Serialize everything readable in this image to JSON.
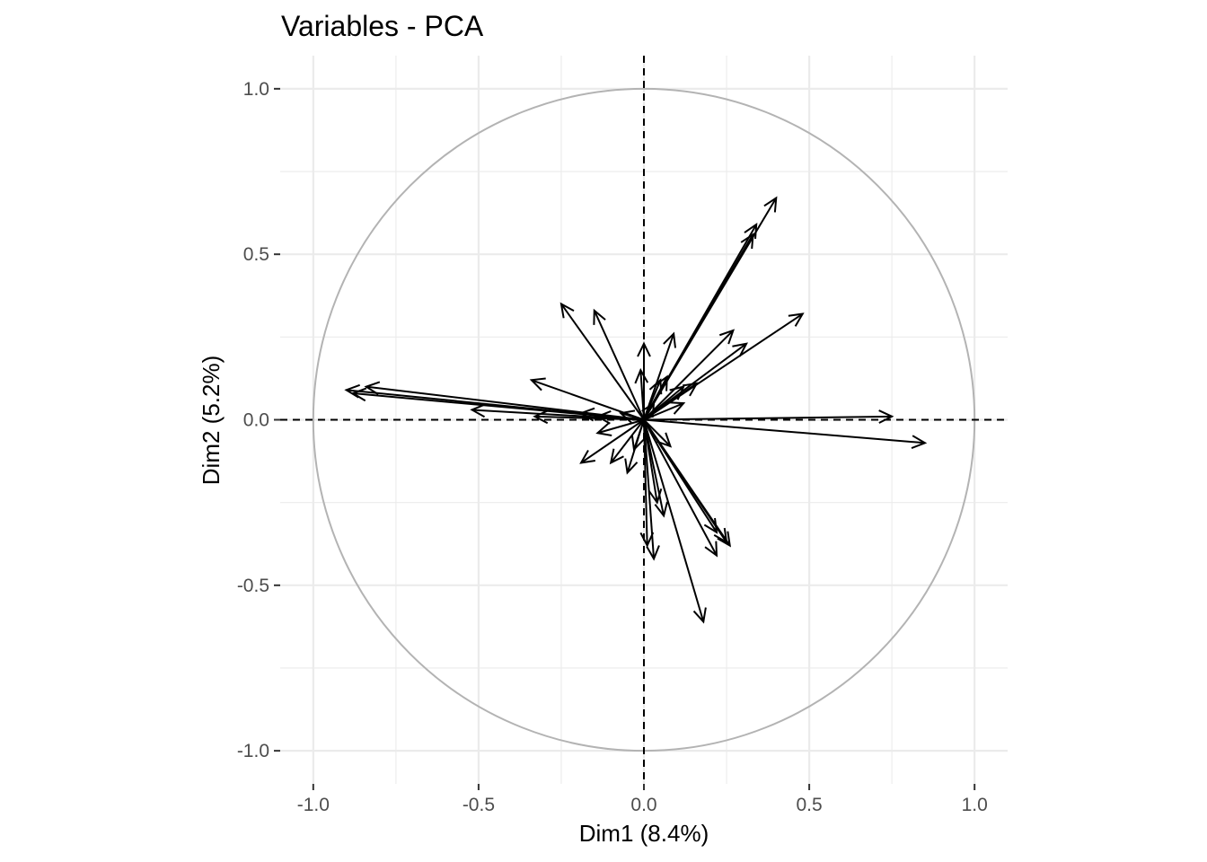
{
  "chart_data": {
    "type": "scatter",
    "subtype": "pca-variable-correlation-circle",
    "title": "Variables - PCA",
    "xlabel": "Dim1 (8.4%)",
    "ylabel": "Dim2 (5.2%)",
    "xlim": [
      -1.1,
      1.1
    ],
    "ylim": [
      -1.1,
      1.1
    ],
    "xticks": [
      -1.0,
      -0.5,
      0.0,
      0.5,
      1.0
    ],
    "yticks": [
      -1.0,
      -0.5,
      0.0,
      0.5,
      1.0
    ],
    "xtick_labels": [
      "-1.0",
      "-0.5",
      "0.0",
      "0.5",
      "1.0"
    ],
    "ytick_labels": [
      "-1.0",
      "-0.5",
      "0.0",
      "0.5",
      "1.0"
    ],
    "grid": true,
    "unit_circle": true,
    "reference_lines": "dashed at x=0 and y=0",
    "colors": {
      "arrow": "#000000",
      "circle": "#b3b3b3",
      "grid": "#ebebeb",
      "tick": "#4d4d4d"
    },
    "vectors": [
      {
        "x": 0.4,
        "y": 0.67
      },
      {
        "x": 0.34,
        "y": 0.59
      },
      {
        "x": 0.33,
        "y": 0.56
      },
      {
        "x": 0.48,
        "y": 0.32
      },
      {
        "x": 0.27,
        "y": 0.27
      },
      {
        "x": 0.31,
        "y": 0.23
      },
      {
        "x": 0.09,
        "y": 0.26
      },
      {
        "x": 0.16,
        "y": 0.11
      },
      {
        "x": 0.12,
        "y": 0.1
      },
      {
        "x": 0.07,
        "y": 0.13
      },
      {
        "x": 0.12,
        "y": 0.05
      },
      {
        "x": 0.0,
        "y": 0.23
      },
      {
        "x": -0.01,
        "y": 0.15
      },
      {
        "x": -0.25,
        "y": 0.35
      },
      {
        "x": -0.15,
        "y": 0.33
      },
      {
        "x": -0.34,
        "y": 0.12
      },
      {
        "x": -0.9,
        "y": 0.09
      },
      {
        "x": -0.88,
        "y": 0.08
      },
      {
        "x": -0.84,
        "y": 0.1
      },
      {
        "x": -0.52,
        "y": 0.03
      },
      {
        "x": -0.33,
        "y": 0.01
      },
      {
        "x": -0.19,
        "y": 0.02
      },
      {
        "x": -0.14,
        "y": 0.01
      },
      {
        "x": -0.07,
        "y": 0.02
      },
      {
        "x": 0.75,
        "y": 0.01
      },
      {
        "x": 0.85,
        "y": -0.07
      },
      {
        "x": -0.19,
        "y": -0.13
      },
      {
        "x": -0.1,
        "y": -0.13
      },
      {
        "x": -0.14,
        "y": -0.04
      },
      {
        "x": -0.05,
        "y": -0.16
      },
      {
        "x": -0.03,
        "y": -0.09
      },
      {
        "x": 0.03,
        "y": -0.42
      },
      {
        "x": 0.01,
        "y": -0.38
      },
      {
        "x": 0.06,
        "y": -0.29
      },
      {
        "x": 0.04,
        "y": -0.25
      },
      {
        "x": 0.18,
        "y": -0.61
      },
      {
        "x": 0.22,
        "y": -0.41
      },
      {
        "x": 0.25,
        "y": -0.37
      },
      {
        "x": 0.26,
        "y": -0.38
      },
      {
        "x": 0.22,
        "y": -0.34
      },
      {
        "x": 0.08,
        "y": -0.08
      },
      {
        "x": 0.03,
        "y": 0.05
      },
      {
        "x": 0.05,
        "y": 0.12
      }
    ]
  }
}
